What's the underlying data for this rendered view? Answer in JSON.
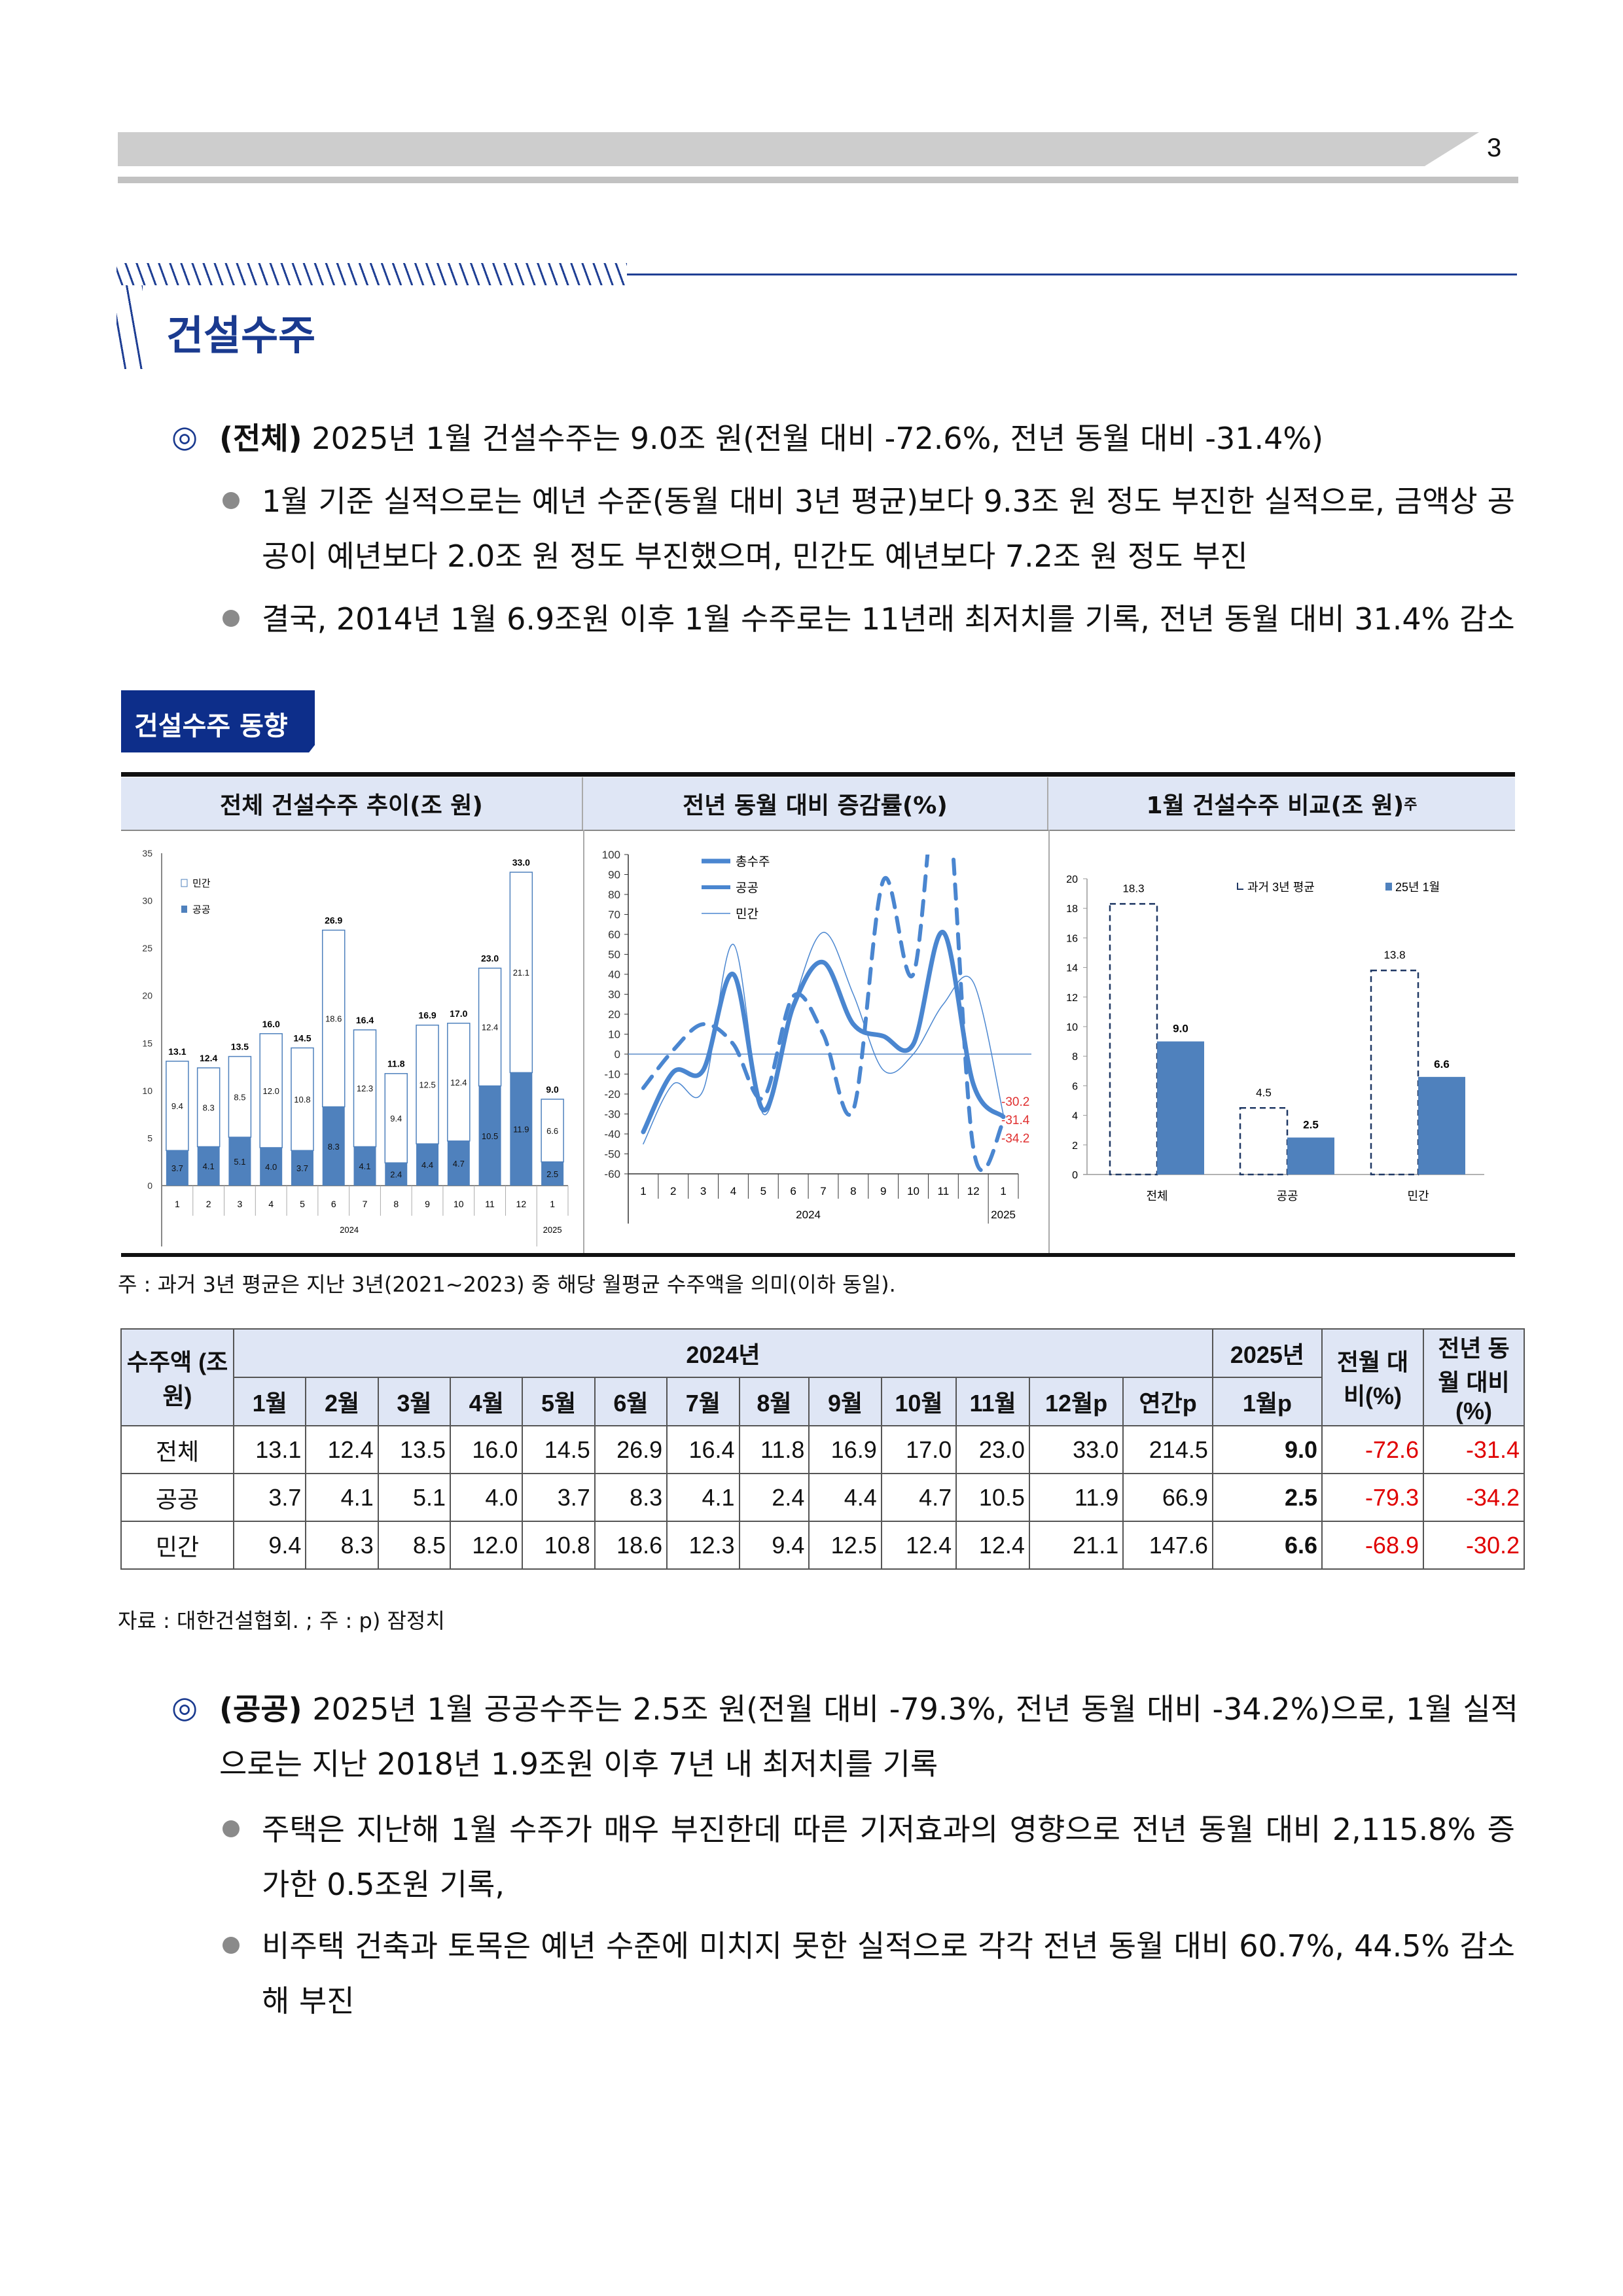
{
  "page_number": "3",
  "section_title": "건설수주",
  "para1": {
    "head": "(전체)",
    "text": " 2025년 1월 건설수주는 9.0조 원(전월 대비 -72.6%, 전년 동월 대비 -31.4%)",
    "bullets": [
      "1월 기준 실적으로는 예년 수준(동월 대비 3년 평균)보다 9.3조 원 정도 부진한 실적으로, 금액상 공공이 예년보다 2.0조 원 정도 부진했으며, 민간도 예년보다 7.2조 원 정도 부진",
      "결국, 2014년 1월 6.9조원 이후 1월 수주로는 11년래 최저치를 기록, 전년 동월 대비 31.4% 감소"
    ]
  },
  "box_label": "건설수주 동향",
  "chart_headers": [
    "전체 건설수주 추이(조 원)",
    "전년 동월 대비 증감률(%)",
    "1월 건설수주 비교(조 원)주"
  ],
  "chart_note": "주 : 과거 3년 평균은 지난 3년(2021~2023) 중 해당 월평균 수주액을 의미(이하 동일).",
  "chart_data": [
    {
      "type": "bar",
      "stacked": true,
      "categories": [
        "1",
        "2",
        "3",
        "4",
        "5",
        "6",
        "7",
        "8",
        "9",
        "10",
        "11",
        "12",
        "1"
      ],
      "year_labels": [
        "2024",
        "2025"
      ],
      "series": [
        {
          "name": "공공",
          "values": [
            3.7,
            4.1,
            5.1,
            4.0,
            3.7,
            8.3,
            4.1,
            2.4,
            4.4,
            4.7,
            10.5,
            11.9,
            2.5
          ],
          "color": "#4f81bd"
        },
        {
          "name": "민간",
          "values": [
            9.4,
            8.3,
            8.5,
            12.0,
            10.8,
            18.6,
            12.3,
            9.4,
            12.5,
            12.4,
            12.4,
            21.1,
            6.6
          ],
          "color": "#ffffff"
        }
      ],
      "totals": [
        "13.1",
        "12.4",
        "13.5",
        "16.0",
        "14.5",
        "26.9",
        "16.4",
        "11.8",
        "16.9",
        "17.0",
        "23.0",
        "33.0",
        "9.0"
      ],
      "ylim": [
        0,
        35
      ],
      "yticks": [
        0,
        5,
        10,
        15,
        20,
        25,
        30,
        35
      ],
      "legend": "top-left"
    },
    {
      "type": "line",
      "categories": [
        "1",
        "2",
        "3",
        "4",
        "5",
        "6",
        "7",
        "8",
        "9",
        "10",
        "11",
        "12",
        "1"
      ],
      "year_labels": [
        "2024",
        "2025"
      ],
      "series": [
        {
          "name": "총수주",
          "values": [
            -39,
            -9,
            -8,
            40,
            -28,
            24,
            46,
            15,
            9,
            5,
            61,
            -15,
            -31.4
          ],
          "style": "thick"
        },
        {
          "name": "공공",
          "values": [
            -17,
            2,
            15,
            5,
            -22,
            29,
            10,
            -28,
            87,
            40,
            150,
            -47,
            -34.2
          ],
          "style": "dashed"
        },
        {
          "name": "민간",
          "values": [
            -45,
            -15,
            -18,
            55,
            -30,
            25,
            61,
            30,
            -8,
            0,
            25,
            36,
            -30.2
          ],
          "style": "thin"
        }
      ],
      "end_labels": [
        "-30.2",
        "-31.4",
        "-34.2"
      ],
      "ylim": [
        -60,
        100
      ],
      "yticks": [
        -60,
        -50,
        -40,
        -30,
        -20,
        -10,
        0,
        10,
        20,
        30,
        40,
        50,
        60,
        70,
        80,
        90,
        100
      ],
      "legend": "top-left",
      "color": "#4a86d0",
      "label_color": "#e03030"
    },
    {
      "type": "bar",
      "categories": [
        "전체",
        "공공",
        "민간"
      ],
      "series": [
        {
          "name": "과거 3년 평균",
          "values": [
            18.3,
            4.5,
            13.8
          ],
          "style": "dashed-outline"
        },
        {
          "name": "25년 1월",
          "values": [
            9.0,
            2.5,
            6.6
          ],
          "color": "#4f81bd"
        }
      ],
      "ylim": [
        0,
        20
      ],
      "yticks": [
        0,
        2,
        4,
        6,
        8,
        10,
        12,
        14,
        16,
        18,
        20
      ],
      "legend": "top"
    }
  ],
  "table": {
    "corner": "수주액 (조 원)",
    "year2024": "2024년",
    "year2025": "2025년",
    "mom": "전월 대비(%)",
    "yoy": "전년 동월 대비(%)",
    "months": [
      "1월",
      "2월",
      "3월",
      "4월",
      "5월",
      "6월",
      "7월",
      "8월",
      "9월",
      "10월",
      "11월",
      "12월p",
      "연간p"
    ],
    "month2025": "1월p",
    "rows": [
      {
        "label": "전체",
        "values": [
          "13.1",
          "12.4",
          "13.5",
          "16.0",
          "14.5",
          "26.9",
          "16.4",
          "11.8",
          "16.9",
          "17.0",
          "23.0",
          "33.0",
          "214.5"
        ],
        "jan25": "9.0",
        "mom": "-72.6",
        "yoy": "-31.4"
      },
      {
        "label": "공공",
        "values": [
          "3.7",
          "4.1",
          "5.1",
          "4.0",
          "3.7",
          "8.3",
          "4.1",
          "2.4",
          "4.4",
          "4.7",
          "10.5",
          "11.9",
          "66.9"
        ],
        "jan25": "2.5",
        "mom": "-79.3",
        "yoy": "-34.2"
      },
      {
        "label": "민간",
        "values": [
          "9.4",
          "8.3",
          "8.5",
          "12.0",
          "10.8",
          "18.6",
          "12.3",
          "9.4",
          "12.5",
          "12.4",
          "12.4",
          "21.1",
          "147.6"
        ],
        "jan25": "6.6",
        "mom": "-68.9",
        "yoy": "-30.2"
      }
    ]
  },
  "source": "자료 : 대한건설협회. ; 주 : p) 잠정치",
  "para2": {
    "head": "(공공)",
    "text": " 2025년 1월 공공수주는 2.5조 원(전월 대비 -79.3%, 전년 동월 대비 -34.2%)으로, 1월 실적으로는 지난 2018년 1.9조원 이후 7년 내 최저치를 기록",
    "bullets": [
      "주택은 지난해 1월 수주가 매우 부진한데 따른 기저효과의 영향으로 전년 동월 대비 2,115.8% 증가한 0.5조원 기록,",
      "비주택 건축과 토목은 예년 수준에 미치지 못한 실적으로 각각 전년 동월 대비 60.7%, 44.5% 감소해 부진"
    ]
  }
}
